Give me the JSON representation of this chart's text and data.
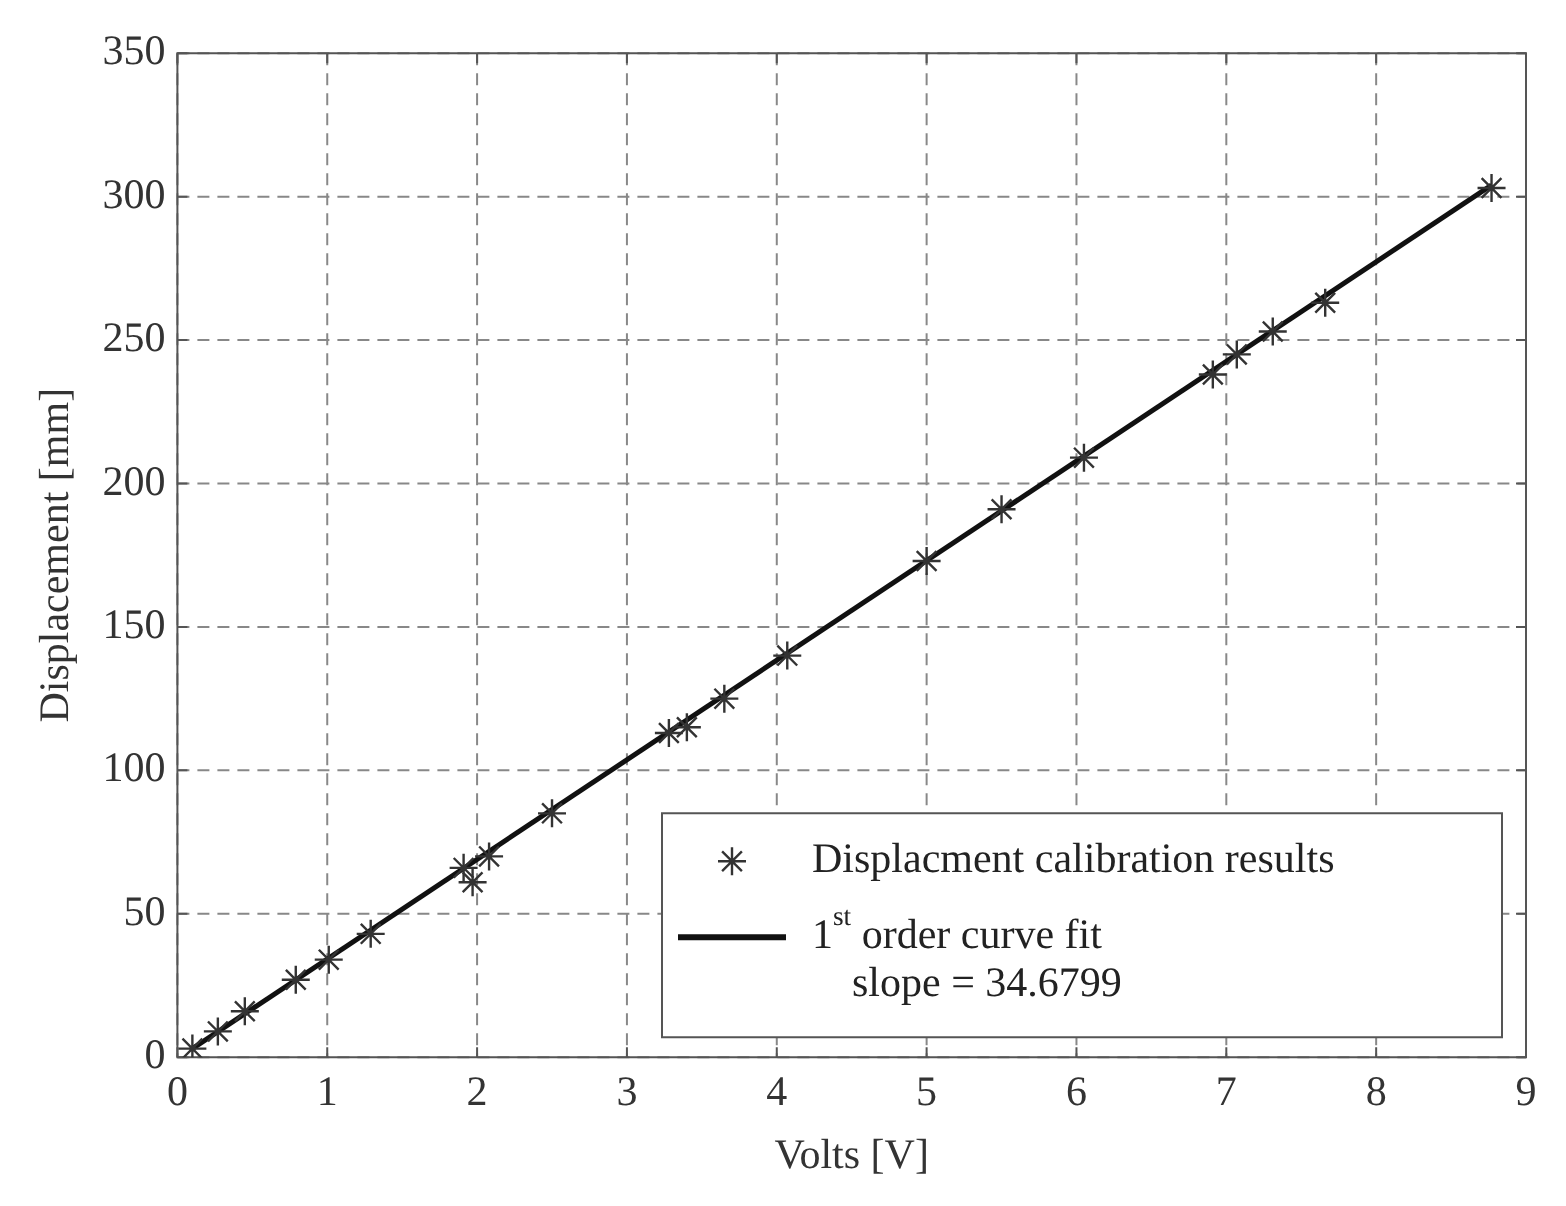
{
  "chart_data": {
    "type": "scatter",
    "xlabel": "Volts [V]",
    "ylabel": "Displacement [mm]",
    "xlim": [
      0,
      9
    ],
    "xticks": [
      0,
      1,
      2,
      3,
      4,
      5,
      6,
      7,
      8,
      9
    ],
    "ylim": [
      0,
      350
    ],
    "yticks": [
      0,
      50,
      100,
      150,
      200,
      250,
      300,
      350
    ],
    "grid": true,
    "legend": "bottom right",
    "series": [
      {
        "name": "Displacment calibration results",
        "type": "scatter",
        "color": "#333333",
        "marker": "cross",
        "x": [
          0.1,
          0.27,
          0.45,
          0.79,
          1.01,
          1.29,
          1.91,
          1.97,
          2.08,
          2.5,
          3.28,
          3.4,
          3.65,
          4.07,
          5.0,
          5.5,
          6.05,
          6.91,
          7.07,
          7.31,
          7.66,
          8.77
        ],
        "values": [
          3,
          9,
          16,
          27,
          34,
          43,
          66,
          61,
          70,
          85,
          113,
          115,
          125,
          140,
          173,
          191,
          209,
          238,
          245,
          253,
          263,
          303
        ]
      },
      {
        "name": "1$^{st}$ order curve fit",
        "type": "line",
        "color": "#111111",
        "marker": "none",
        "line_style": "solid",
        "x": [
          0.1,
          8.77
        ],
        "values": [
          3,
          304
        ]
      }
    ],
    "annotations": [
      "slope = 34.6799"
    ]
  }
}
